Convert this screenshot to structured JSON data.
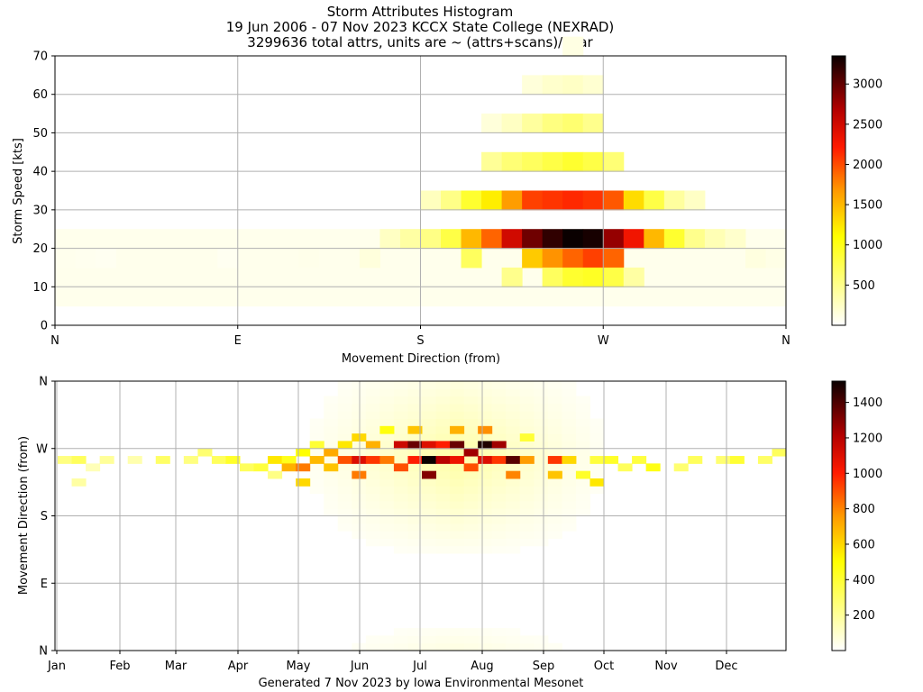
{
  "header": {
    "title_line1": "Storm Attributes Histogram",
    "title_line2": "19 Jun 2006 - 07 Nov 2023 KCCX State College (NEXRAD)",
    "title_line3": "3299636 total attrs, units are ~ (attrs+scans)/year"
  },
  "footer": {
    "generated": "Generated 7 Nov 2023 by Iowa Environmental Mesonet"
  },
  "colors": {
    "colormap": "hot_r",
    "grid": "#b0b0b0",
    "gradient_stops": [
      [
        0.0,
        "#ffffff"
      ],
      [
        0.33,
        "#ffff00"
      ],
      [
        0.5,
        "#ff9900"
      ],
      [
        0.66,
        "#ff1a00"
      ],
      [
        0.8,
        "#b30000"
      ],
      [
        1.0,
        "#0a0000"
      ]
    ]
  },
  "chart_data": [
    {
      "type": "heatmap",
      "title": "",
      "xlabel": "Movement Direction (from)",
      "ylabel": "Storm Speed [kts]",
      "x_tick_labels": [
        "N",
        "E",
        "S",
        "W",
        "N"
      ],
      "x_tick_values_deg": [
        0,
        90,
        180,
        270,
        360
      ],
      "xlim": [
        0,
        360
      ],
      "y_ticks": [
        0,
        10,
        20,
        30,
        40,
        50,
        60,
        70
      ],
      "ylim": [
        0,
        70
      ],
      "grid": true,
      "x_bin_deg": 10,
      "y_bin_kts": 5,
      "colorbar": {
        "ticks": [
          500,
          1000,
          1500,
          2000,
          2500,
          3000
        ],
        "range": [
          0,
          3350
        ]
      },
      "cells": [
        {
          "dir": 10,
          "speed": 15,
          "v": 80
        },
        {
          "dir": 20,
          "speed": 15,
          "v": 70
        },
        {
          "dir": 30,
          "speed": 15,
          "v": 60
        },
        {
          "dir": 90,
          "speed": 15,
          "v": 60
        },
        {
          "dir": 130,
          "speed": 15,
          "v": 90
        },
        {
          "dir": 160,
          "speed": 15,
          "v": 150
        },
        {
          "dir": 170,
          "speed": 20,
          "v": 260
        },
        {
          "dir": 180,
          "speed": 20,
          "v": 400
        },
        {
          "dir": 190,
          "speed": 20,
          "v": 530
        },
        {
          "dir": 190,
          "speed": 30,
          "v": 280
        },
        {
          "dir": 200,
          "speed": 20,
          "v": 800
        },
        {
          "dir": 200,
          "speed": 30,
          "v": 520
        },
        {
          "dir": 210,
          "speed": 20,
          "v": 1500
        },
        {
          "dir": 210,
          "speed": 30,
          "v": 900
        },
        {
          "dir": 210,
          "speed": 15,
          "v": 700
        },
        {
          "dir": 220,
          "speed": 20,
          "v": 1900
        },
        {
          "dir": 220,
          "speed": 30,
          "v": 1200
        },
        {
          "dir": 220,
          "speed": 40,
          "v": 450
        },
        {
          "dir": 220,
          "speed": 50,
          "v": 160
        },
        {
          "dir": 230,
          "speed": 20,
          "v": 2500
        },
        {
          "dir": 230,
          "speed": 30,
          "v": 1650
        },
        {
          "dir": 230,
          "speed": 10,
          "v": 500
        },
        {
          "dir": 230,
          "speed": 40,
          "v": 600
        },
        {
          "dir": 230,
          "speed": 50,
          "v": 260
        },
        {
          "dir": 240,
          "speed": 20,
          "v": 2950
        },
        {
          "dir": 240,
          "speed": 30,
          "v": 2050
        },
        {
          "dir": 240,
          "speed": 15,
          "v": 1400
        },
        {
          "dir": 240,
          "speed": 40,
          "v": 700
        },
        {
          "dir": 240,
          "speed": 50,
          "v": 420
        },
        {
          "dir": 240,
          "speed": 60,
          "v": 160
        },
        {
          "dir": 250,
          "speed": 20,
          "v": 3200
        },
        {
          "dir": 250,
          "speed": 30,
          "v": 2100
        },
        {
          "dir": 250,
          "speed": 15,
          "v": 1700
        },
        {
          "dir": 250,
          "speed": 10,
          "v": 700
        },
        {
          "dir": 250,
          "speed": 40,
          "v": 800
        },
        {
          "dir": 250,
          "speed": 50,
          "v": 550
        },
        {
          "dir": 250,
          "speed": 60,
          "v": 220
        },
        {
          "dir": 260,
          "speed": 20,
          "v": 3350
        },
        {
          "dir": 260,
          "speed": 30,
          "v": 2150
        },
        {
          "dir": 260,
          "speed": 15,
          "v": 1900
        },
        {
          "dir": 260,
          "speed": 10,
          "v": 900
        },
        {
          "dir": 260,
          "speed": 40,
          "v": 900
        },
        {
          "dir": 260,
          "speed": 50,
          "v": 620
        },
        {
          "dir": 260,
          "speed": 60,
          "v": 250
        },
        {
          "dir": 260,
          "speed": 70,
          "v": 120
        },
        {
          "dir": 270,
          "speed": 20,
          "v": 3300
        },
        {
          "dir": 270,
          "speed": 30,
          "v": 2100
        },
        {
          "dir": 270,
          "speed": 15,
          "v": 2050
        },
        {
          "dir": 270,
          "speed": 10,
          "v": 950
        },
        {
          "dir": 270,
          "speed": 40,
          "v": 800
        },
        {
          "dir": 270,
          "speed": 50,
          "v": 500
        },
        {
          "dir": 270,
          "speed": 60,
          "v": 200
        },
        {
          "dir": 280,
          "speed": 20,
          "v": 2800
        },
        {
          "dir": 280,
          "speed": 30,
          "v": 1950
        },
        {
          "dir": 280,
          "speed": 15,
          "v": 1900
        },
        {
          "dir": 280,
          "speed": 10,
          "v": 800
        },
        {
          "dir": 280,
          "speed": 40,
          "v": 600
        },
        {
          "dir": 290,
          "speed": 20,
          "v": 2300
        },
        {
          "dir": 290,
          "speed": 30,
          "v": 1300
        },
        {
          "dir": 290,
          "speed": 10,
          "v": 400
        },
        {
          "dir": 300,
          "speed": 20,
          "v": 1500
        },
        {
          "dir": 300,
          "speed": 30,
          "v": 800
        },
        {
          "dir": 310,
          "speed": 20,
          "v": 900
        },
        {
          "dir": 310,
          "speed": 30,
          "v": 420
        },
        {
          "dir": 320,
          "speed": 20,
          "v": 500
        },
        {
          "dir": 320,
          "speed": 30,
          "v": 250
        },
        {
          "dir": 330,
          "speed": 20,
          "v": 320
        },
        {
          "dir": 340,
          "speed": 20,
          "v": 220
        },
        {
          "dir": 350,
          "speed": 15,
          "v": 140
        },
        {
          "dir": 360,
          "speed": 15,
          "v": 110
        }
      ]
    },
    {
      "type": "heatmap",
      "title": "",
      "xlabel": "",
      "ylabel": "Movement Direction (from)",
      "x_tick_labels": [
        "Jan",
        "Feb",
        "Mar",
        "Apr",
        "May",
        "Jun",
        "Jul",
        "Aug",
        "Sep",
        "Oct",
        "Nov",
        "Dec"
      ],
      "y_tick_labels": [
        "N",
        "E",
        "S",
        "W",
        "N"
      ],
      "y_tick_values_deg": [
        0,
        90,
        180,
        270,
        360
      ],
      "ylim": [
        0,
        360
      ],
      "grid": true,
      "x_bin_days": 7,
      "y_bin_deg": 10,
      "colorbar": {
        "ticks": [
          200,
          400,
          600,
          800,
          1000,
          1200,
          1400
        ],
        "range": [
          0,
          1520
        ]
      },
      "cells": [
        {
          "week": 1,
          "dir": 250,
          "v": 250
        },
        {
          "week": 2,
          "dir": 250,
          "v": 320
        },
        {
          "week": 2,
          "dir": 220,
          "v": 180
        },
        {
          "week": 3,
          "dir": 240,
          "v": 140
        },
        {
          "week": 4,
          "dir": 250,
          "v": 200
        },
        {
          "week": 6,
          "dir": 250,
          "v": 160
        },
        {
          "week": 8,
          "dir": 250,
          "v": 300
        },
        {
          "week": 10,
          "dir": 250,
          "v": 250
        },
        {
          "week": 11,
          "dir": 260,
          "v": 280
        },
        {
          "week": 12,
          "dir": 250,
          "v": 320
        },
        {
          "week": 13,
          "dir": 250,
          "v": 420
        },
        {
          "week": 14,
          "dir": 240,
          "v": 320
        },
        {
          "week": 15,
          "dir": 240,
          "v": 380
        },
        {
          "week": 16,
          "dir": 250,
          "v": 560
        },
        {
          "week": 16,
          "dir": 230,
          "v": 240
        },
        {
          "week": 17,
          "dir": 250,
          "v": 450
        },
        {
          "week": 17,
          "dir": 240,
          "v": 700
        },
        {
          "week": 18,
          "dir": 260,
          "v": 500
        },
        {
          "week": 18,
          "dir": 240,
          "v": 820
        },
        {
          "week": 18,
          "dir": 220,
          "v": 600
        },
        {
          "week": 19,
          "dir": 250,
          "v": 680
        },
        {
          "week": 19,
          "dir": 270,
          "v": 400
        },
        {
          "week": 20,
          "dir": 260,
          "v": 720
        },
        {
          "week": 20,
          "dir": 240,
          "v": 650
        },
        {
          "week": 21,
          "dir": 250,
          "v": 900
        },
        {
          "week": 21,
          "dir": 270,
          "v": 560
        },
        {
          "week": 22,
          "dir": 250,
          "v": 1100
        },
        {
          "week": 22,
          "dir": 230,
          "v": 820
        },
        {
          "week": 22,
          "dir": 280,
          "v": 600
        },
        {
          "week": 23,
          "dir": 250,
          "v": 950
        },
        {
          "week": 23,
          "dir": 270,
          "v": 700
        },
        {
          "week": 24,
          "dir": 250,
          "v": 820
        },
        {
          "week": 24,
          "dir": 290,
          "v": 480
        },
        {
          "week": 25,
          "dir": 270,
          "v": 1150
        },
        {
          "week": 25,
          "dir": 240,
          "v": 900
        },
        {
          "week": 26,
          "dir": 270,
          "v": 1350
        },
        {
          "week": 26,
          "dir": 250,
          "v": 1000
        },
        {
          "week": 26,
          "dir": 290,
          "v": 650
        },
        {
          "week": 27,
          "dir": 250,
          "v": 1520
        },
        {
          "week": 27,
          "dir": 230,
          "v": 1300
        },
        {
          "week": 27,
          "dir": 270,
          "v": 1100
        },
        {
          "week": 28,
          "dir": 250,
          "v": 1200
        },
        {
          "week": 28,
          "dir": 270,
          "v": 1000
        },
        {
          "week": 29,
          "dir": 270,
          "v": 1350
        },
        {
          "week": 29,
          "dir": 250,
          "v": 1050
        },
        {
          "week": 29,
          "dir": 290,
          "v": 700
        },
        {
          "week": 30,
          "dir": 260,
          "v": 1250
        },
        {
          "week": 30,
          "dir": 240,
          "v": 900
        },
        {
          "week": 31,
          "dir": 270,
          "v": 1480
        },
        {
          "week": 31,
          "dir": 250,
          "v": 1100
        },
        {
          "week": 31,
          "dir": 290,
          "v": 780
        },
        {
          "week": 32,
          "dir": 270,
          "v": 1250
        },
        {
          "week": 32,
          "dir": 250,
          "v": 950
        },
        {
          "week": 33,
          "dir": 250,
          "v": 1380
        },
        {
          "week": 33,
          "dir": 230,
          "v": 800
        },
        {
          "week": 34,
          "dir": 250,
          "v": 750
        },
        {
          "week": 34,
          "dir": 280,
          "v": 400
        },
        {
          "week": 36,
          "dir": 250,
          "v": 950
        },
        {
          "week": 36,
          "dir": 230,
          "v": 650
        },
        {
          "week": 37,
          "dir": 250,
          "v": 600
        },
        {
          "week": 38,
          "dir": 230,
          "v": 420
        },
        {
          "week": 39,
          "dir": 220,
          "v": 560
        },
        {
          "week": 39,
          "dir": 250,
          "v": 380
        },
        {
          "week": 40,
          "dir": 250,
          "v": 420
        },
        {
          "week": 41,
          "dir": 240,
          "v": 320
        },
        {
          "week": 42,
          "dir": 250,
          "v": 380
        },
        {
          "week": 43,
          "dir": 240,
          "v": 460
        },
        {
          "week": 45,
          "dir": 240,
          "v": 280
        },
        {
          "week": 46,
          "dir": 250,
          "v": 320
        },
        {
          "week": 48,
          "dir": 250,
          "v": 280
        },
        {
          "week": 49,
          "dir": 250,
          "v": 400
        },
        {
          "week": 51,
          "dir": 250,
          "v": 300
        },
        {
          "week": 52,
          "dir": 260,
          "v": 320
        }
      ]
    }
  ]
}
